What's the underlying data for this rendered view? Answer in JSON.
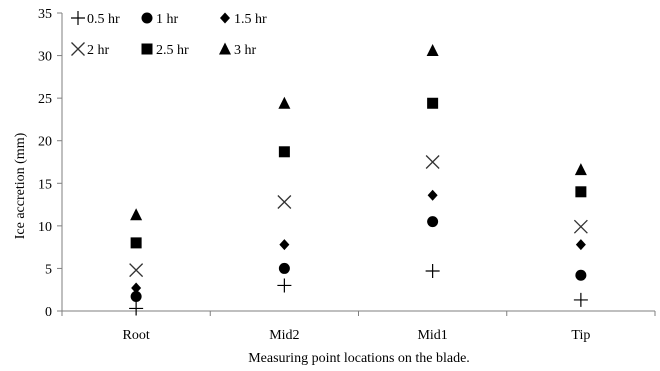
{
  "chart_data": {
    "type": "scatter",
    "categories": [
      "Root",
      "Mid2",
      "Mid1",
      "Tip"
    ],
    "xlabel": "Measuring point locations on the blade.",
    "ylabel": "Ice accretion (mm)",
    "ylim": [
      0,
      35
    ],
    "yticks": [
      0,
      5,
      10,
      15,
      20,
      25,
      30,
      35
    ],
    "grid": false,
    "legend_position": "top-left",
    "series": [
      {
        "name": "0.5 hr",
        "marker": "plus",
        "values": [
          0.3,
          3.0,
          4.7,
          1.3
        ]
      },
      {
        "name": "1 hr",
        "marker": "circle",
        "values": [
          1.7,
          5.0,
          10.5,
          4.2
        ]
      },
      {
        "name": "1.5 hr",
        "marker": "diamond",
        "values": [
          2.7,
          7.8,
          13.6,
          7.8
        ]
      },
      {
        "name": "2 hr",
        "marker": "cross",
        "values": [
          4.8,
          12.8,
          17.5,
          9.9
        ]
      },
      {
        "name": "2.5 hr",
        "marker": "square",
        "values": [
          8.0,
          18.7,
          24.4,
          14.0
        ]
      },
      {
        "name": "3 hr",
        "marker": "triangle",
        "values": [
          11.3,
          24.4,
          30.6,
          16.6
        ]
      }
    ]
  }
}
